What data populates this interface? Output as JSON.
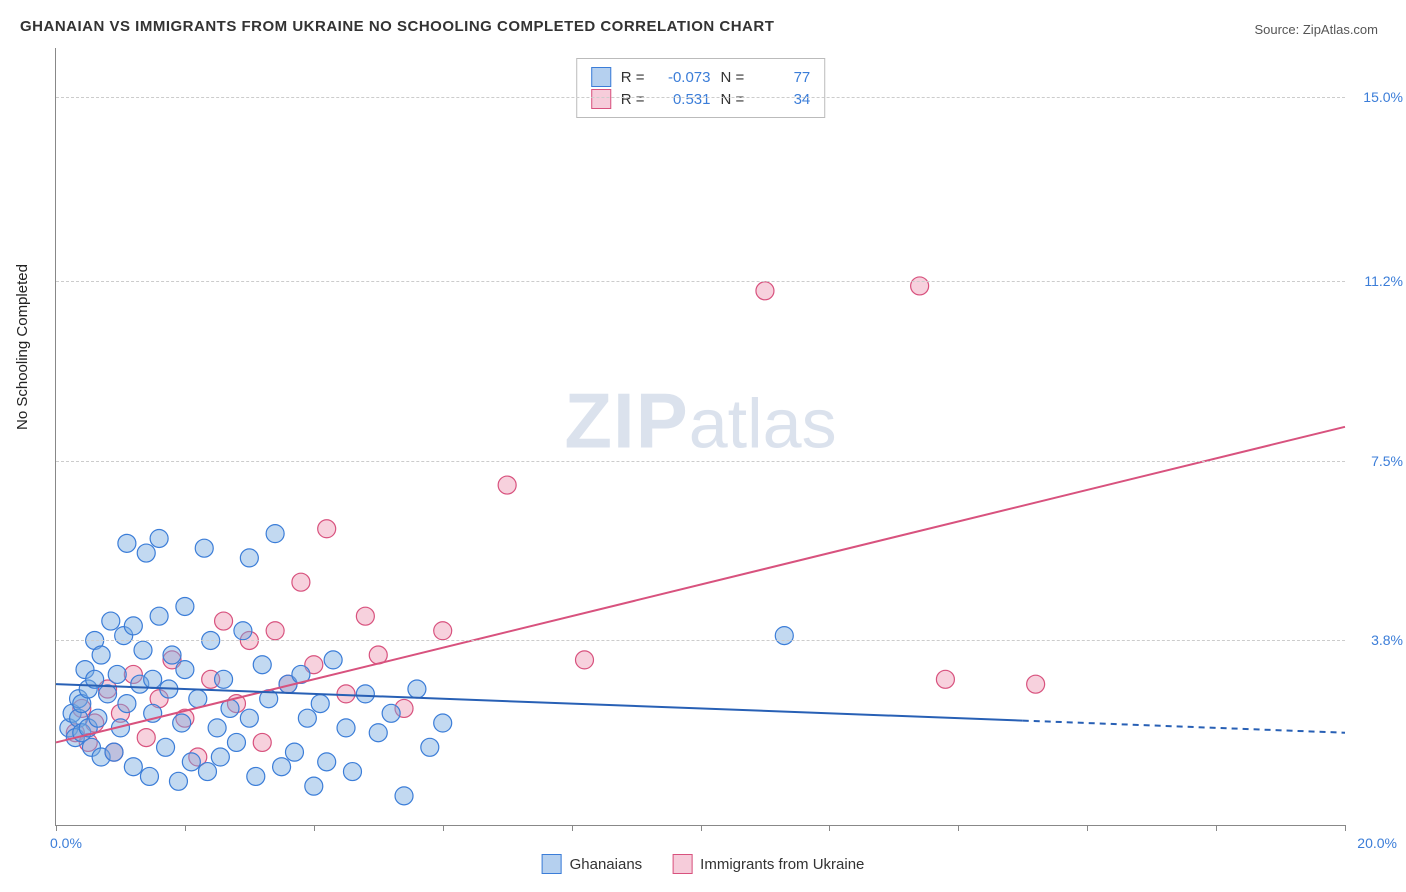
{
  "title": "GHANAIAN VS IMMIGRANTS FROM UKRAINE NO SCHOOLING COMPLETED CORRELATION CHART",
  "source_prefix": "Source: ",
  "source_name": "ZipAtlas.com",
  "ylabel": "No Schooling Completed",
  "watermark_a": "ZIP",
  "watermark_b": "atlas",
  "chart": {
    "type": "scatter",
    "xlim": [
      0,
      20
    ],
    "ylim": [
      0,
      16
    ],
    "x_ticks": [
      0,
      2,
      4,
      6,
      8,
      10,
      12,
      14,
      16,
      18,
      20
    ],
    "y_gridlines": [
      3.8,
      7.5,
      11.2,
      15.0
    ],
    "x_labels": [
      {
        "x": 0,
        "text": "0.0%"
      },
      {
        "x": 20,
        "text": "20.0%"
      }
    ],
    "y_labels": [
      {
        "y": 3.8,
        "text": "3.8%"
      },
      {
        "y": 7.5,
        "text": "7.5%"
      },
      {
        "y": 11.2,
        "text": "11.2%"
      },
      {
        "y": 15.0,
        "text": "15.0%"
      }
    ],
    "background_color": "#ffffff",
    "grid_color": "#cccccc",
    "axis_color": "#888888",
    "marker_radius": 9,
    "marker_stroke_width": 1.2,
    "line_width": 2,
    "series": {
      "ghanaians": {
        "label": "Ghanaians",
        "fill": "rgba(120,170,225,0.45)",
        "stroke": "#3b7dd8",
        "line_color": "#2860b5",
        "R": "-0.073",
        "N": "77",
        "trend": {
          "x1": 0,
          "y1": 2.9,
          "x2_solid": 15,
          "y2_solid": 2.15,
          "x2": 20,
          "y2": 1.9
        },
        "points": [
          [
            0.2,
            2.0
          ],
          [
            0.25,
            2.3
          ],
          [
            0.3,
            1.8
          ],
          [
            0.35,
            2.2
          ],
          [
            0.35,
            2.6
          ],
          [
            0.4,
            1.9
          ],
          [
            0.4,
            2.5
          ],
          [
            0.45,
            3.2
          ],
          [
            0.5,
            2.0
          ],
          [
            0.5,
            2.8
          ],
          [
            0.55,
            1.6
          ],
          [
            0.6,
            3.0
          ],
          [
            0.6,
            3.8
          ],
          [
            0.65,
            2.2
          ],
          [
            0.7,
            1.4
          ],
          [
            0.7,
            3.5
          ],
          [
            0.8,
            2.7
          ],
          [
            0.85,
            4.2
          ],
          [
            0.9,
            1.5
          ],
          [
            0.95,
            3.1
          ],
          [
            1.0,
            2.0
          ],
          [
            1.05,
            3.9
          ],
          [
            1.1,
            2.5
          ],
          [
            1.1,
            5.8
          ],
          [
            1.2,
            1.2
          ],
          [
            1.2,
            4.1
          ],
          [
            1.3,
            2.9
          ],
          [
            1.35,
            3.6
          ],
          [
            1.4,
            5.6
          ],
          [
            1.45,
            1.0
          ],
          [
            1.5,
            2.3
          ],
          [
            1.5,
            3.0
          ],
          [
            1.6,
            4.3
          ],
          [
            1.6,
            5.9
          ],
          [
            1.7,
            1.6
          ],
          [
            1.75,
            2.8
          ],
          [
            1.8,
            3.5
          ],
          [
            1.9,
            0.9
          ],
          [
            1.95,
            2.1
          ],
          [
            2.0,
            3.2
          ],
          [
            2.0,
            4.5
          ],
          [
            2.1,
            1.3
          ],
          [
            2.2,
            2.6
          ],
          [
            2.3,
            5.7
          ],
          [
            2.35,
            1.1
          ],
          [
            2.4,
            3.8
          ],
          [
            2.5,
            2.0
          ],
          [
            2.55,
            1.4
          ],
          [
            2.6,
            3.0
          ],
          [
            2.7,
            2.4
          ],
          [
            2.8,
            1.7
          ],
          [
            2.9,
            4.0
          ],
          [
            3.0,
            5.5
          ],
          [
            3.0,
            2.2
          ],
          [
            3.1,
            1.0
          ],
          [
            3.2,
            3.3
          ],
          [
            3.3,
            2.6
          ],
          [
            3.4,
            6.0
          ],
          [
            3.5,
            1.2
          ],
          [
            3.6,
            2.9
          ],
          [
            3.7,
            1.5
          ],
          [
            3.8,
            3.1
          ],
          [
            3.9,
            2.2
          ],
          [
            4.0,
            0.8
          ],
          [
            4.1,
            2.5
          ],
          [
            4.2,
            1.3
          ],
          [
            4.3,
            3.4
          ],
          [
            4.5,
            2.0
          ],
          [
            4.6,
            1.1
          ],
          [
            4.8,
            2.7
          ],
          [
            5.0,
            1.9
          ],
          [
            5.2,
            2.3
          ],
          [
            5.4,
            0.6
          ],
          [
            5.6,
            2.8
          ],
          [
            5.8,
            1.6
          ],
          [
            6.0,
            2.1
          ],
          [
            11.3,
            3.9
          ]
        ]
      },
      "ukraine": {
        "label": "Immigrants from Ukraine",
        "fill": "rgba(235,140,170,0.40)",
        "stroke": "#d8527e",
        "line_color": "#d8527e",
        "R": "0.531",
        "N": "34",
        "trend": {
          "x1": 0,
          "y1": 1.7,
          "x2": 20,
          "y2": 8.2
        },
        "points": [
          [
            0.3,
            1.9
          ],
          [
            0.4,
            2.4
          ],
          [
            0.5,
            1.7
          ],
          [
            0.6,
            2.1
          ],
          [
            0.8,
            2.8
          ],
          [
            0.9,
            1.5
          ],
          [
            1.0,
            2.3
          ],
          [
            1.2,
            3.1
          ],
          [
            1.4,
            1.8
          ],
          [
            1.6,
            2.6
          ],
          [
            1.8,
            3.4
          ],
          [
            2.0,
            2.2
          ],
          [
            2.2,
            1.4
          ],
          [
            2.4,
            3.0
          ],
          [
            2.6,
            4.2
          ],
          [
            2.8,
            2.5
          ],
          [
            3.0,
            3.8
          ],
          [
            3.2,
            1.7
          ],
          [
            3.4,
            4.0
          ],
          [
            3.6,
            2.9
          ],
          [
            3.8,
            5.0
          ],
          [
            4.0,
            3.3
          ],
          [
            4.2,
            6.1
          ],
          [
            4.5,
            2.7
          ],
          [
            4.8,
            4.3
          ],
          [
            5.0,
            3.5
          ],
          [
            5.4,
            2.4
          ],
          [
            6.0,
            4.0
          ],
          [
            7.0,
            7.0
          ],
          [
            8.2,
            3.4
          ],
          [
            11.0,
            11.0
          ],
          [
            13.4,
            11.1
          ],
          [
            13.8,
            3.0
          ],
          [
            15.2,
            2.9
          ]
        ]
      }
    }
  },
  "stats_label_R": "R =",
  "stats_label_N": "N ="
}
